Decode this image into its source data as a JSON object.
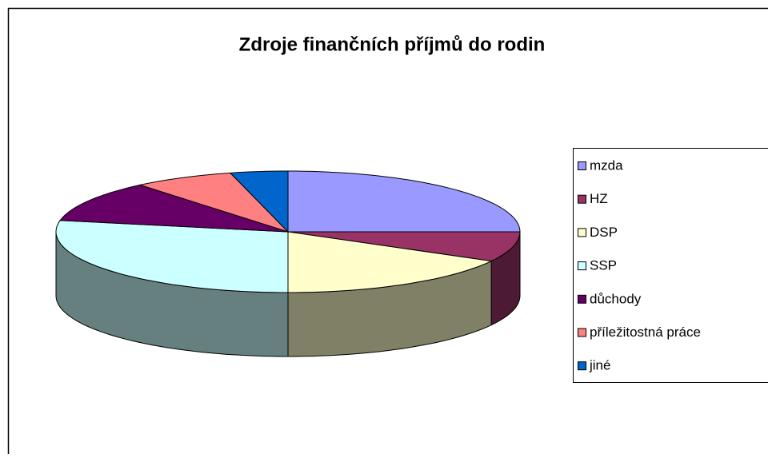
{
  "chart_data": {
    "type": "pie",
    "title": "Zdroje finančních příjmů do rodin",
    "categories": [
      "mzda",
      "HZ",
      "DSP",
      "SSP",
      "důchody",
      "příležitostná práce",
      "jiné"
    ],
    "values": [
      25,
      8,
      17,
      28,
      11,
      7,
      4
    ],
    "colors": [
      "#9999ff",
      "#993366",
      "#ffffcc",
      "#ccffff",
      "#660066",
      "#ff8080",
      "#0066cc"
    ]
  }
}
